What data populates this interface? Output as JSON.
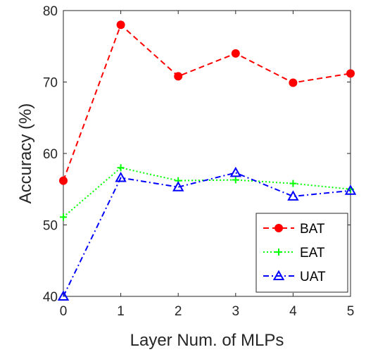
{
  "chart_data": {
    "type": "line",
    "title": "",
    "xlabel": "Layer Num. of MLPs",
    "ylabel": "Accuracy (%)",
    "x": [
      0,
      1,
      2,
      3,
      4,
      5
    ],
    "xlim": [
      0,
      5
    ],
    "ylim": [
      40,
      80
    ],
    "xticks": [
      "0",
      "1",
      "2",
      "3",
      "4",
      "5"
    ],
    "yticks": [
      "40",
      "50",
      "60",
      "70",
      "80"
    ],
    "grid": false,
    "legend_position": "bottom-right",
    "series": [
      {
        "name": "BAT",
        "values": [
          56.2,
          78.0,
          70.8,
          74.0,
          69.9,
          71.2
        ],
        "color": "#ff0000",
        "dash": "dashed",
        "marker": "circle"
      },
      {
        "name": "EAT",
        "values": [
          51.1,
          58.0,
          56.2,
          56.3,
          55.8,
          55.0
        ],
        "color": "#00ff00",
        "dash": "dotted",
        "marker": "plus"
      },
      {
        "name": "UAT",
        "values": [
          40.0,
          56.6,
          55.3,
          57.3,
          54.0,
          54.8
        ],
        "color": "#0000ff",
        "dash": "dashdot",
        "marker": "triangle"
      }
    ]
  }
}
